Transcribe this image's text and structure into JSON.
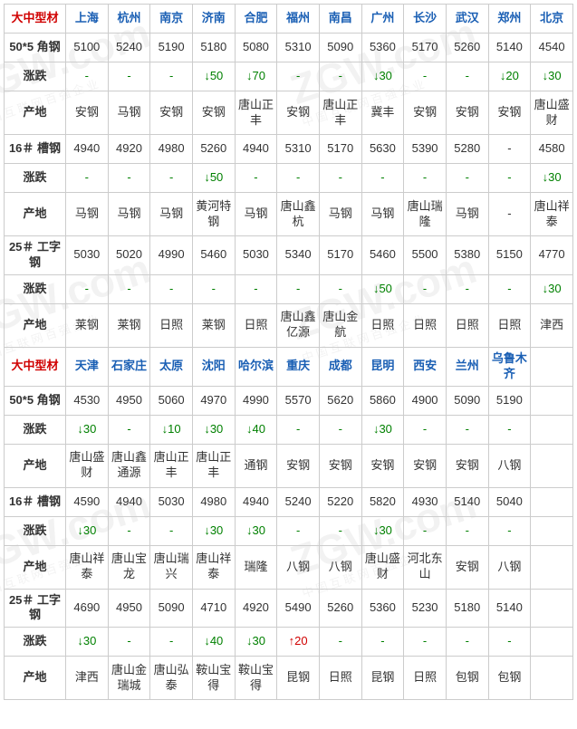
{
  "watermark": {
    "main": "ZGW.com",
    "sub": "中国互联网百强企业"
  },
  "colors": {
    "section_header": "#d00000",
    "city_header": "#1a5fb4",
    "down": "#008000",
    "up": "#d00000",
    "border": "#cccccc",
    "text": "#333333"
  },
  "labels": {
    "section": "大中型材",
    "product_angle": "50*5 角钢",
    "product_channel": "16＃ 槽钢",
    "product_ibeam": "25＃ 工字钢",
    "change": "涨跌",
    "origin": "产地"
  },
  "sections": [
    {
      "cities": [
        "上海",
        "杭州",
        "南京",
        "济南",
        "合肥",
        "福州",
        "南昌",
        "广州",
        "长沙",
        "武汉",
        "郑州",
        "北京"
      ],
      "products": [
        {
          "key": "angle",
          "prices": [
            "5100",
            "5240",
            "5190",
            "5180",
            "5080",
            "5310",
            "5090",
            "5360",
            "5170",
            "5260",
            "5140",
            "4540"
          ],
          "changes": [
            "-",
            "-",
            "-",
            "↓50",
            "↓70",
            "-",
            "-",
            "↓30",
            "-",
            "-",
            "↓20",
            "↓30"
          ],
          "origins": [
            "安钢",
            "马钢",
            "安钢",
            "安钢",
            "唐山正丰",
            "安钢",
            "唐山正丰",
            "冀丰",
            "安钢",
            "安钢",
            "安钢",
            "唐山盛财"
          ]
        },
        {
          "key": "channel",
          "prices": [
            "4940",
            "4920",
            "4980",
            "5260",
            "4940",
            "5310",
            "5170",
            "5630",
            "5390",
            "5280",
            "-",
            "4580"
          ],
          "changes": [
            "-",
            "-",
            "-",
            "↓50",
            "-",
            "-",
            "-",
            "-",
            "-",
            "-",
            "-",
            "↓30"
          ],
          "origins": [
            "马钢",
            "马钢",
            "马钢",
            "黄河特钢",
            "马钢",
            "唐山鑫杭",
            "马钢",
            "马钢",
            "唐山瑞隆",
            "马钢",
            "-",
            "唐山祥泰"
          ]
        },
        {
          "key": "ibeam",
          "prices": [
            "5030",
            "5020",
            "4990",
            "5460",
            "5030",
            "5340",
            "5170",
            "5460",
            "5500",
            "5380",
            "5150",
            "4770"
          ],
          "changes": [
            "-",
            "-",
            "-",
            "-",
            "-",
            "-",
            "-",
            "↓50",
            "-",
            "-",
            "-",
            "↓30"
          ],
          "origins": [
            "莱钢",
            "莱钢",
            "日照",
            "莱钢",
            "日照",
            "唐山鑫亿源",
            "唐山金航",
            "日照",
            "日照",
            "日照",
            "日照",
            "津西"
          ]
        }
      ]
    },
    {
      "cities": [
        "天津",
        "石家庄",
        "太原",
        "沈阳",
        "哈尔滨",
        "重庆",
        "成都",
        "昆明",
        "西安",
        "兰州",
        "乌鲁木齐",
        ""
      ],
      "products": [
        {
          "key": "angle",
          "prices": [
            "4530",
            "4950",
            "5060",
            "4970",
            "4990",
            "5570",
            "5620",
            "5860",
            "4900",
            "5090",
            "5190",
            ""
          ],
          "changes": [
            "↓30",
            "-",
            "↓10",
            "↓30",
            "↓40",
            "-",
            "-",
            "↓30",
            "-",
            "-",
            "-",
            ""
          ],
          "origins": [
            "唐山盛财",
            "唐山鑫通源",
            "唐山正丰",
            "唐山正丰",
            "通钢",
            "安钢",
            "安钢",
            "安钢",
            "安钢",
            "安钢",
            "八钢",
            ""
          ]
        },
        {
          "key": "channel",
          "prices": [
            "4590",
            "4940",
            "5030",
            "4980",
            "4940",
            "5240",
            "5220",
            "5820",
            "4930",
            "5140",
            "5040",
            ""
          ],
          "changes": [
            "↓30",
            "-",
            "-",
            "↓30",
            "↓30",
            "-",
            "-",
            "↓30",
            "-",
            "-",
            "-",
            ""
          ],
          "origins": [
            "唐山祥泰",
            "唐山宝龙",
            "唐山瑞兴",
            "唐山祥泰",
            "瑞隆",
            "八钢",
            "八钢",
            "唐山盛财",
            "河北东山",
            "安钢",
            "八钢",
            ""
          ]
        },
        {
          "key": "ibeam",
          "prices": [
            "4690",
            "4950",
            "5090",
            "4710",
            "4920",
            "5490",
            "5260",
            "5360",
            "5230",
            "5180",
            "5140",
            ""
          ],
          "changes": [
            "↓30",
            "-",
            "-",
            "↓40",
            "↓30",
            "↑20",
            "-",
            "-",
            "-",
            "-",
            "-",
            ""
          ],
          "origins": [
            "津西",
            "唐山金瑞城",
            "唐山弘泰",
            "鞍山宝得",
            "鞍山宝得",
            "昆钢",
            "日照",
            "昆钢",
            "日照",
            "包钢",
            "包钢",
            ""
          ]
        }
      ]
    }
  ]
}
